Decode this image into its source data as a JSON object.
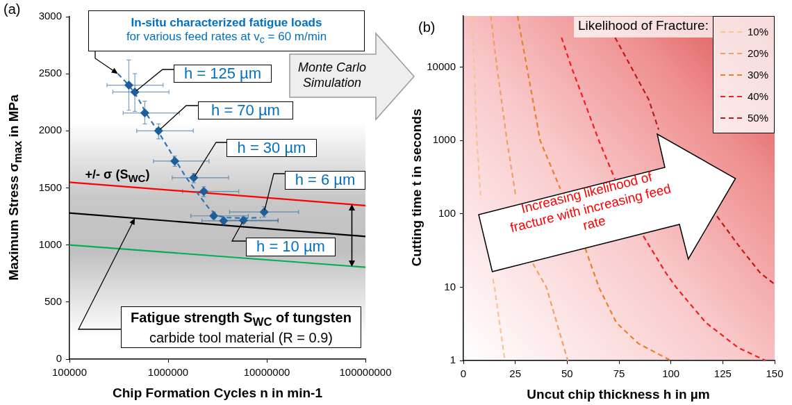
{
  "chart_data": [
    {
      "type": "scatter",
      "title": "(a)",
      "xlabel": "Chip Formation Cycles n in min-1",
      "ylabel": "Maximum Stress σ$_{max}$ in MPa",
      "log": "x",
      "xlim": [
        100000,
        100000000
      ],
      "xticks": [
        100000,
        1000000,
        10000000,
        100000000
      ],
      "ylim": [
        0,
        3000
      ],
      "yticks": [
        0,
        500,
        1000,
        1500,
        2000,
        2500,
        3000
      ],
      "grid": false,
      "legend": false,
      "series": [
        {
          "color": "#1f5f99",
          "marker": "diamond",
          "x": [
            400000,
            460000,
            580000,
            800000,
            1170000,
            1820000,
            2300000,
            2900000,
            3650000,
            5800000,
            9400000
          ],
          "values": [
            2400,
            2340,
            2157,
            2000,
            1735,
            1589,
            1469,
            1255,
            1212,
            1216,
            1289
          ],
          "errors": [
            [
              2180,
              2620
            ],
            [
              2170,
              2500
            ],
            [
              2060,
              2260
            ],
            [
              1930,
              2060
            ],
            [
              1690,
              1780
            ],
            [
              1545,
              1625
            ],
            [
              1425,
              1510
            ],
            [
              1230,
              1290
            ],
            [
              1185,
              1240
            ],
            [
              1190,
              1245
            ],
            [
              1245,
              1335
            ]
          ],
          "xerrors": [
            [
              240000,
              890000
            ],
            [
              275000,
              1020000
            ],
            [
              350000,
              1300000
            ],
            [
              480000,
              1800000
            ],
            [
              710000,
              2600000
            ],
            [
              1100000,
              4100000
            ],
            [
              1400000,
              5200000
            ],
            [
              1700000,
              6500000
            ],
            [
              2200000,
              13000000
            ],
            [
              3500000,
              13000000
            ],
            [
              4200000,
              21000000
            ]
          ]
        },
        {
          "type": "line",
          "color": "#2e75b6",
          "line_style": "dashed",
          "marker": "none",
          "x": [
            310000,
            400000,
            500000,
            600000,
            800000,
            1100000,
            1500000,
            2000000,
            2600000,
            3200000,
            4000000,
            6000000,
            8700000
          ],
          "values": [
            2500,
            2400,
            2280,
            2150,
            1990,
            1790,
            1600,
            1450,
            1320,
            1255,
            1240,
            1235,
            1240
          ]
        },
        {
          "type": "line",
          "color": "#ff0000",
          "marker": "none",
          "x": [
            100000,
            100000000
          ],
          "values": [
            1550,
            1345
          ]
        },
        {
          "type": "line",
          "color": "#000000",
          "marker": "none",
          "x": [
            100000,
            100000000
          ],
          "values": [
            1280,
            1075
          ]
        },
        {
          "type": "line",
          "color": "#00b050",
          "marker": "none",
          "x": [
            100000,
            100000000
          ],
          "values": [
            1000,
            805
          ]
        }
      ],
      "annotations": [
        {
          "text": "In-situ characterized fatigue loads\nfor various feed rates at v$_{c}$ = 60 m/min",
          "x": 310000,
          "y": 2500
        },
        {
          "text": "h = 125 µm",
          "x": 460000,
          "y": 2340
        },
        {
          "text": "h = 70 µm",
          "x": 800000,
          "y": 2000
        },
        {
          "text": "h = 30 µm",
          "x": 1820000,
          "y": 1589
        },
        {
          "text": "h = 6 µm",
          "x": 9400000,
          "y": 1289
        },
        {
          "text": "h = 10 µm",
          "x": 5800000,
          "y": 1216
        },
        "+/- σ (S$_{WC}$)",
        {
          "text": "Fatigue strength S$_{WC}$ of tungsten\ncarbide tool material (R = 0.9)",
          "x": 460000,
          "y": 1235
        },
        "Monte Carlo\nSimulation"
      ]
    },
    {
      "type": "line",
      "title": "(b)",
      "xlabel": "Uncut chip thickness h in µm",
      "ylabel": "Cutting time t in seconds",
      "log": "y",
      "xlim": [
        0,
        150
      ],
      "xticks": [
        0,
        25,
        50,
        75,
        100,
        125,
        150
      ],
      "ylim": [
        1,
        50000
      ],
      "yticks": [
        1,
        10,
        100,
        1000,
        10000
      ],
      "grid": false,
      "legend": "top right",
      "legend_title": "Likelihood of Fracture:",
      "line_style": "dashed",
      "marker": "none",
      "series": [
        {
          "name": "10%",
          "color": "#f5c490",
          "x": [
            4.2,
            5.2,
            6.5,
            8.4,
            10,
            14.2,
            15,
            20
          ],
          "values": [
            50000,
            10000,
            1000,
            158,
            null,
            13,
            10,
            1
          ]
        },
        {
          "name": "20%",
          "color": "#f0a060",
          "x": [
            13.2,
            16.2,
            21,
            25.3,
            30,
            33.5,
            40,
            50.3
          ],
          "values": [
            50000,
            10000,
            1000,
            170,
            null,
            21,
            10,
            1
          ]
        },
        {
          "name": "30%",
          "color": "#e8802a",
          "x": [
            26.1,
            30.6,
            37,
            46.7,
            52,
            58.7,
            65.3,
            73.7,
            84.4,
            100
          ],
          "values": [
            50000,
            10000,
            1000,
            220,
            null,
            34,
            10,
            3.3,
            1.7,
            1
          ]
        },
        {
          "name": "40%",
          "color": "#f02020",
          "x": [
            47.3,
            52.1,
            65.3,
            73,
            80,
            86.7,
            97.7,
            102.5,
            116.8,
            132.4,
            145.6
          ],
          "values": [
            25400,
            10000,
            1000,
            300,
            null,
            50,
            15.5,
            10,
            3.3,
            1.5,
            1
          ]
        },
        {
          "name": "50%",
          "color": "#c01818",
          "x": [
            73.1,
            80.9,
            89.3,
            94.1,
            110,
            122.2,
            133.6,
            143.2,
            150
          ],
          "values": [
            25400,
            10000,
            3630,
            1410,
            null,
            93,
            34,
            15.5,
            11
          ]
        }
      ],
      "annotations": [
        "Increasing likelihood of\nfracture with increasing feed\nrate"
      ]
    }
  ]
}
